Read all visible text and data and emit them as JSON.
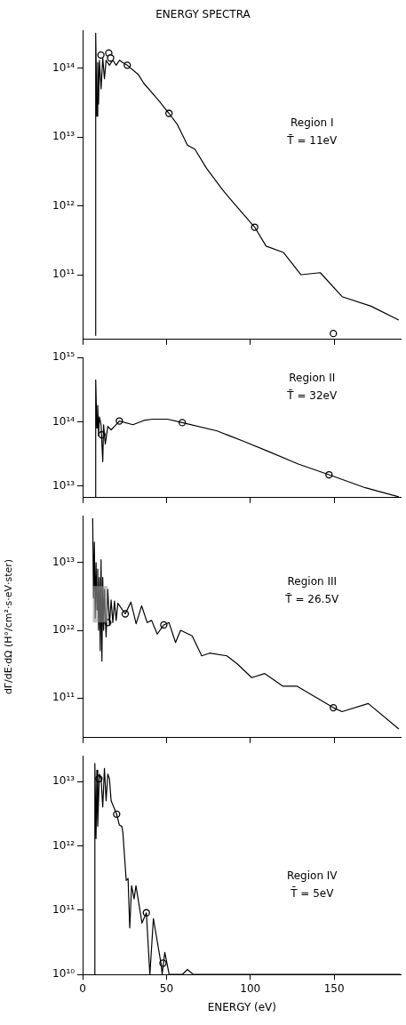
{
  "chart_data": [
    {
      "type": "line",
      "title": "ENERGY SPECTRA",
      "log": true,
      "tick_labels": "y",
      "xlim": [
        0,
        190
      ],
      "xticks": [
        0,
        50,
        100,
        150
      ],
      "ylim": [
        11500000000.0,
        350000000000000.0
      ],
      "yticks": [
        {
          "value": 100000000000.0,
          "label": "10¹¹"
        },
        {
          "value": 1000000000000.0,
          "label": "10¹²"
        },
        {
          "value": 10000000000000.0,
          "label": "10¹³"
        },
        {
          "value": 100000000000000.0,
          "label": "10¹⁴"
        }
      ],
      "annotations": [
        "Region I",
        "T̄ = 11eV"
      ],
      "series": [
        {
          "type": "line",
          "color": "#000000",
          "marker": "none",
          "x": [
            7.8,
            7.8,
            8.5,
            9,
            9.5,
            10,
            11,
            12,
            13,
            14,
            16,
            18,
            20,
            22,
            24,
            26.6,
            33.3,
            36.5,
            45.3,
            51.5,
            56.6,
            62.5,
            67,
            73.9,
            83.5,
            88.7,
            102.6,
            109.4,
            119.8,
            130.2,
            141.7,
            154.7,
            171.9,
            188.5
          ],
          "values": [
            13000000000.0,
            320000000000000.0,
            20000000000000.0,
            120000000000000.0,
            30000000000000.0,
            130000000000000.0,
            50000000000000.0,
            140000000000000.0,
            70000000000000.0,
            130000000000000.0,
            110000000000000.0,
            130000000000000.0,
            110000000000000.0,
            130000000000000.0,
            120000000000000.0,
            110000000000000.0,
            80000000000000.0,
            60000000000000.0,
            34000000000000.0,
            22000000000000.0,
            15000000000000.0,
            7600000000000.0,
            6600000000000.0,
            3500000000000.0,
            1700000000000.0,
            1200000000000.0,
            490000000000.0,
            260000000000.0,
            210000000000.0,
            100000000000.0,
            107000000000.0,
            48000000000.0,
            35000000000.0,
            22000000000.0
          ]
        },
        {
          "type": "scatter",
          "color": "#000000",
          "marker": "circle",
          "x": [
            10.9,
            15.6,
            16.7,
            26.6,
            51.5,
            102.6,
            149.5
          ],
          "values": [
            155000000000000.0,
            165000000000000.0,
            140000000000000.0,
            110000000000000.0,
            22000000000000.0,
            490000000000.0,
            14000000000.0
          ]
        }
      ]
    },
    {
      "type": "line",
      "log": true,
      "tick_labels": "y",
      "xlim": [
        0,
        190
      ],
      "xticks": [
        0,
        50,
        100,
        150
      ],
      "ylim": [
        6600000000000.0,
        1000000000000000.0
      ],
      "yticks": [
        {
          "value": 10000000000000.0,
          "label": "10¹³"
        },
        {
          "value": 100000000000000.0,
          "label": "10¹⁴"
        },
        {
          "value": 1000000000000000.0,
          "label": "10¹⁵"
        }
      ],
      "annotations": [
        "Region II",
        "T̄ = 32eV"
      ],
      "series": [
        {
          "type": "line",
          "color": "#000000",
          "marker": "none",
          "x": [
            7.8,
            7.8,
            8.5,
            9,
            9.5,
            10,
            11,
            12,
            12.5,
            13.5,
            15,
            17,
            19,
            21.9,
            30,
            36.5,
            41.7,
            50.5,
            59.4,
            80.2,
            95.8,
            111.5,
            128.6,
            146.9,
            168.6,
            188.5
          ],
          "values": [
            6600000000000.0,
            450000000000000.0,
            80000000000000.0,
            180000000000000.0,
            60000000000000.0,
            120000000000000.0,
            90000000000000.0,
            24000000000000.0,
            90000000000000.0,
            45000000000000.0,
            85000000000000.0,
            75000000000000.0,
            85000000000000.0,
            103000000000000.0,
            90000000000000.0,
            105000000000000.0,
            110000000000000.0,
            110000000000000.0,
            97000000000000.0,
            72000000000000.0,
            50000000000000.0,
            34000000000000.0,
            22000000000000.0,
            15000000000000.0,
            9400000000000.0,
            6800000000000.0
          ]
        },
        {
          "type": "scatter",
          "color": "#000000",
          "marker": "circle",
          "x": [
            11.5,
            21.9,
            59.4,
            146.9
          ],
          "values": [
            63000000000000.0,
            103000000000000.0,
            97000000000000.0,
            15000000000000.0
          ]
        }
      ]
    },
    {
      "type": "line",
      "log": true,
      "tick_labels": "y",
      "ylabel": "dΓ/dE·dΩ (H°/cm²·s·eV·ster)",
      "xlim": [
        0,
        190
      ],
      "xticks": [
        0,
        50,
        100,
        150
      ],
      "ylim": [
        26000000000.0,
        49000000000000.0
      ],
      "yticks": [
        {
          "value": 100000000000.0,
          "label": "10¹¹"
        },
        {
          "value": 1000000000000.0,
          "label": "10¹²"
        },
        {
          "value": 10000000000000.0,
          "label": "10¹³"
        }
      ],
      "annotations": [
        "Region III",
        "T̄ = 26.5V"
      ],
      "series": [
        {
          "type": "area",
          "color": "#999999",
          "x": [
            6,
            15
          ],
          "values": [
            null,
            null
          ],
          "lower": [
            1300000000000.0,
            1300000000000.0
          ],
          "upper": [
            4500000000000.0,
            4500000000000.0
          ]
        },
        {
          "type": "line",
          "color": "#000000",
          "marker": "none",
          "x": [
            6,
            6.5,
            7,
            7.5,
            8,
            8.5,
            9,
            9.5,
            10,
            10.5,
            11,
            11.5,
            12,
            12.5,
            13,
            14,
            15,
            16,
            17,
            18,
            19,
            20,
            21,
            25.4,
            28.8,
            31.9,
            35.2,
            38.5,
            41.1,
            44.5,
            48.4,
            51.5,
            55.4,
            58.4,
            65.3,
            71,
            75.7,
            86,
            92.2,
            100.8,
            108.6,
            119.3,
            127.7,
            149.5,
            154.7,
            170.3,
            188.5
          ],
          "values": [
            45000000000000.0,
            3000000000000.0,
            20000000000000.0,
            1500000000000.0,
            10000000000000.0,
            2000000000000.0,
            8000000000000.0,
            1000000000000.0,
            6000000000000.0,
            500000000000.0,
            11000000000000.0,
            350000000000.0,
            6000000000000.0,
            1000000000000.0,
            4000000000000.0,
            800000000000.0,
            4000000000000.0,
            1200000000000.0,
            2800000000000.0,
            1300000000000.0,
            2700000000000.0,
            1400000000000.0,
            2500000000000.0,
            1750000000000.0,
            2600000000000.0,
            1250000000000.0,
            2300000000000.0,
            1300000000000.0,
            1400000000000.0,
            880000000000.0,
            1200000000000.0,
            1300000000000.0,
            660000000000.0,
            1000000000000.0,
            830000000000.0,
            420000000000.0,
            460000000000.0,
            420000000000.0,
            320000000000.0,
            200000000000.0,
            230000000000.0,
            150000000000.0,
            150000000000.0,
            72000000000.0,
            63000000000.0,
            83000000000.0,
            35000000000.0
          ]
        },
        {
          "type": "scatter",
          "color": "#000000",
          "marker": "circle",
          "x": [
            15,
            25.4,
            48.4,
            149.5
          ],
          "values": [
            1300000000000.0,
            1750000000000.0,
            1200000000000.0,
            72000000000.0
          ]
        }
      ]
    },
    {
      "type": "line",
      "log": true,
      "xlabel": "ENERGY (eV)",
      "xlim": [
        0,
        190
      ],
      "xticks": [
        0,
        50,
        100,
        150
      ],
      "ylim": [
        10000000000.0,
        25000000000000.0
      ],
      "yticks": [
        {
          "value": 10000000000.0,
          "label": "10¹⁰"
        },
        {
          "value": 100000000000.0,
          "label": "10¹¹"
        },
        {
          "value": 1000000000000.0,
          "label": "10¹²"
        },
        {
          "value": 10000000000000.0,
          "label": "10¹³"
        }
      ],
      "annotations": [
        "Region IV",
        "T̄ = 5eV"
      ],
      "series": [
        {
          "type": "line",
          "color": "#000000",
          "marker": "none",
          "x": [
            7.3,
            7.3,
            8,
            8.5,
            9,
            10,
            11,
            12,
            13,
            14,
            15,
            16,
            17,
            20.3,
            21.9,
            23.4,
            24,
            26,
            27.1,
            28.1,
            29.2,
            30.7,
            31.8,
            35.4,
            38,
            40.1,
            42.2,
            46.9,
            47.4,
            49,
            51.6,
            59.4,
            62.5,
            66,
            189.5
          ],
          "values": [
            10000000000.0,
            19000000000000.0,
            1300000000000.0,
            15000000000000.0,
            2000000000000.0,
            13000000000000.0,
            11000000000000.0,
            4000000000000.0,
            16000000000000.0,
            5000000000000.0,
            13000000000000.0,
            11000000000000.0,
            5000000000000.0,
            3100000000000.0,
            2100000000000.0,
            2000000000000.0,
            1600000000000.0,
            290000000000.0,
            310000000000.0,
            53000000000.0,
            240000000000.0,
            150000000000.0,
            240000000000.0,
            63000000000.0,
            91000000000.0,
            10000000000.0,
            74000000000.0,
            14000000000.0,
            10000000000.0,
            22000000000.0,
            10000000000.0,
            10000000000.0,
            12000000000.0,
            10000000000.0,
            10000000000.0
          ]
        },
        {
          "type": "scatter",
          "color": "#000000",
          "marker": "circle",
          "x": [
            9.7,
            20.3,
            38,
            47.9
          ],
          "values": [
            11000000000000.0,
            3100000000000.0,
            91000000000.0,
            15000000000.0
          ]
        }
      ]
    }
  ]
}
